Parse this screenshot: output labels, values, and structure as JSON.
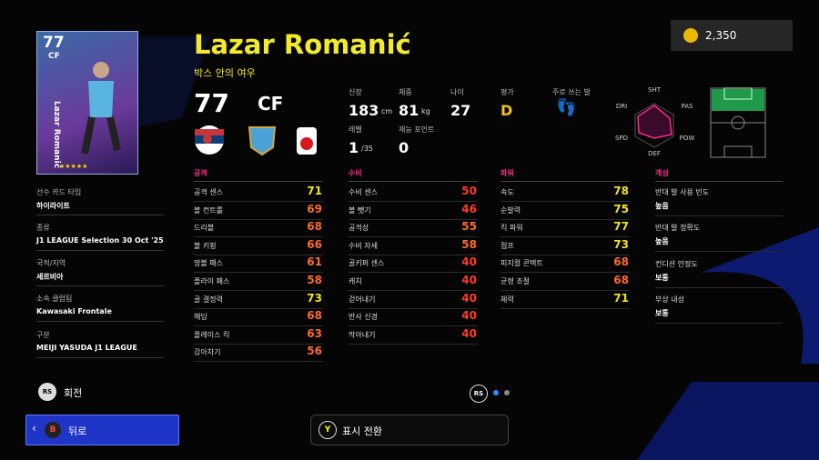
{
  "coins": "2,350",
  "card": {
    "rating": "77",
    "position": "CF",
    "name": "Lazar Romanić"
  },
  "header": {
    "name": "Lazar Romanić",
    "nickname": "박스 안의 여우",
    "rating": "77",
    "position": "CF"
  },
  "info": [
    {
      "label": "신장",
      "value": "183",
      "unit": "cm"
    },
    {
      "label": "체중",
      "value": "81",
      "unit": "kg"
    },
    {
      "label": "나이",
      "value": "27"
    },
    {
      "label": "평가",
      "value": "D"
    },
    {
      "label": "주로 쓰는 발"
    },
    {
      "label": "레벨",
      "value": "1",
      "unit": "/35"
    },
    {
      "label": "재능 포인트",
      "value": "0"
    }
  ],
  "radar": [
    "SHT",
    "PAS",
    "POW",
    "DEF",
    "SPD",
    "DRI"
  ],
  "profile": [
    {
      "label": "선수 카드 타입",
      "value": "하이라이트"
    },
    {
      "label": "종류",
      "value": "J1 LEAGUE Selection 30 Oct '25"
    },
    {
      "label": "국적/지역",
      "value": "세르비아"
    },
    {
      "label": "소속 클럽팀",
      "value": "Kawasaki Frontale"
    },
    {
      "label": "구분",
      "value": "MEIJI YASUDA J1 LEAGUE"
    }
  ],
  "stats": [
    {
      "title": "공격",
      "rows": [
        {
          "label": "공격 센스",
          "value": 71
        },
        {
          "label": "볼 컨트롤",
          "value": 69
        },
        {
          "label": "드리블",
          "value": 68
        },
        {
          "label": "볼 키핑",
          "value": 66
        },
        {
          "label": "땅볼 패스",
          "value": 61
        },
        {
          "label": "플라이 패스",
          "value": 58
        },
        {
          "label": "골 결정력",
          "value": 73
        },
        {
          "label": "헤딩",
          "value": 68
        },
        {
          "label": "플레이스 킥",
          "value": 63
        },
        {
          "label": "감아차기",
          "value": 56
        }
      ]
    },
    {
      "title": "수비",
      "rows": [
        {
          "label": "수비 센스",
          "value": 50
        },
        {
          "label": "볼 뺏기",
          "value": 46
        },
        {
          "label": "공격성",
          "value": 55
        },
        {
          "label": "수비 자세",
          "value": 58
        },
        {
          "label": "골키퍼 센스",
          "value": 40
        },
        {
          "label": "캐치",
          "value": 40
        },
        {
          "label": "걷어내기",
          "value": 40
        },
        {
          "label": "반사 신경",
          "value": 40
        },
        {
          "label": "막아내기",
          "value": 40
        }
      ]
    },
    {
      "title": "파워",
      "rows": [
        {
          "label": "속도",
          "value": 78
        },
        {
          "label": "순발력",
          "value": 75
        },
        {
          "label": "킥 파워",
          "value": 77
        },
        {
          "label": "점프",
          "value": 73
        },
        {
          "label": "피지컬 콘택트",
          "value": 68
        },
        {
          "label": "균형 조절",
          "value": 68
        },
        {
          "label": "체력",
          "value": 71
        }
      ]
    }
  ],
  "traits": {
    "title": "개성",
    "rows": [
      {
        "label": "반대 발 사용 빈도",
        "value": "높음"
      },
      {
        "label": "반대 발 정확도",
        "value": "높음"
      },
      {
        "label": "컨디션 안정도",
        "value": "보통"
      },
      {
        "label": "부상 내성",
        "value": "보통"
      }
    ]
  },
  "controls": {
    "rotate_icon": "RS",
    "rotate": "회전",
    "page_icon": "RS",
    "back_icon": "B",
    "back": "뒤로",
    "toggle_icon": "Y",
    "toggle": "표시 전환"
  }
}
